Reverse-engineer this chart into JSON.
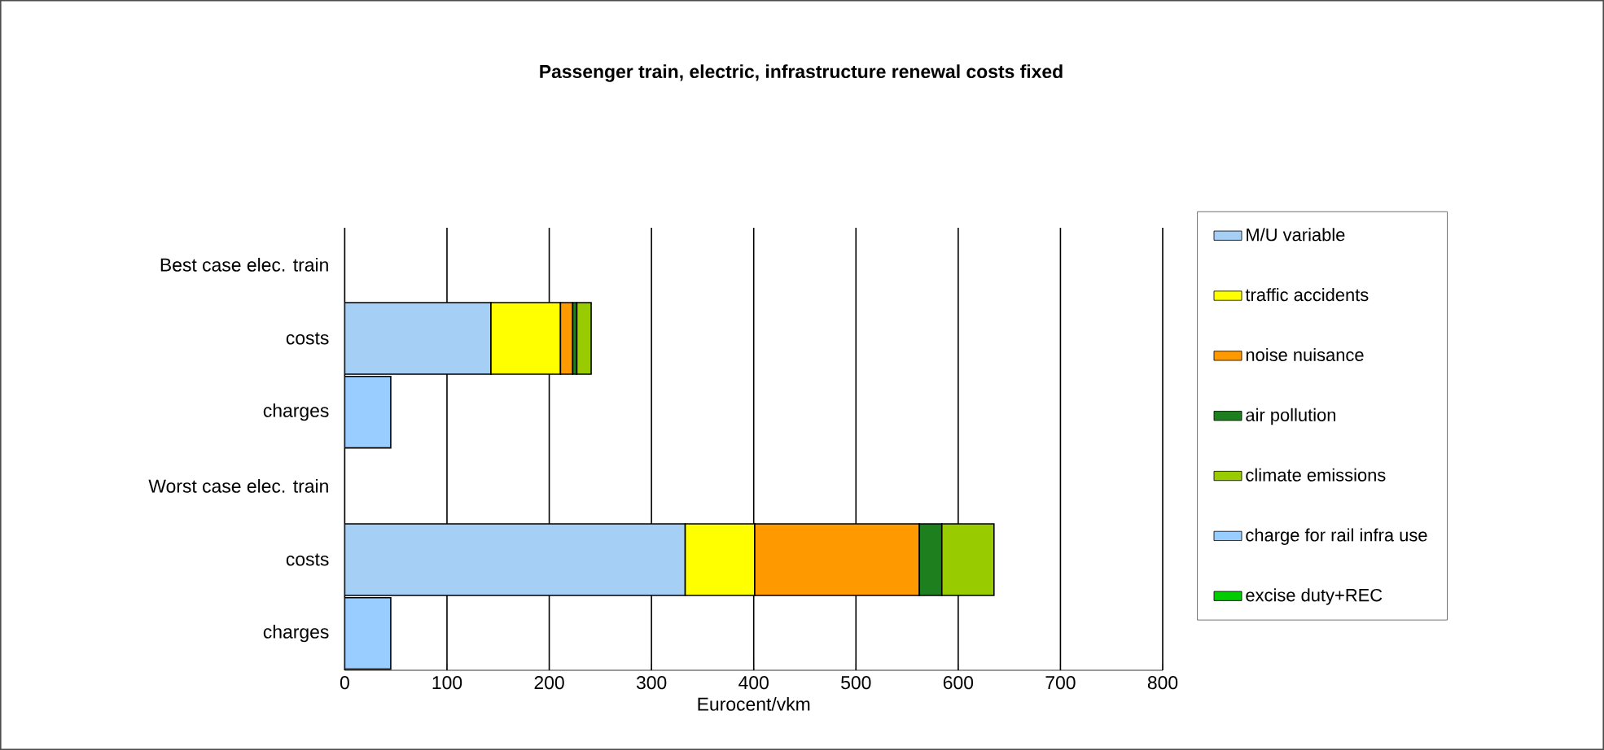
{
  "chart_data": {
    "type": "bar",
    "orientation": "horizontal",
    "stacked": true,
    "title": "Passenger train, electric, infrastructure renewal costs fixed",
    "xlabel": "Eurocent/vkm",
    "categories": [
      "Best case elec. train",
      "costs",
      "charges",
      "Worst case elec. train",
      "costs",
      "charges"
    ],
    "series": [
      {
        "name": "M/U variable",
        "color": "#a6cff5",
        "values": [
          null,
          143,
          null,
          null,
          333,
          null
        ]
      },
      {
        "name": "traffic accidents",
        "color": "#ffff00",
        "values": [
          null,
          68,
          null,
          null,
          68,
          null
        ]
      },
      {
        "name": "noise nuisance",
        "color": "#ff9900",
        "values": [
          null,
          12,
          null,
          null,
          161,
          null
        ]
      },
      {
        "name": "air pollution",
        "color": "#1e7f1e",
        "values": [
          null,
          4,
          null,
          null,
          22,
          null
        ]
      },
      {
        "name": "climate emissions",
        "color": "#99cc00",
        "values": [
          null,
          14,
          null,
          null,
          51,
          null
        ]
      },
      {
        "name": "charge for rail infra use",
        "color": "#99ccff",
        "values": [
          null,
          null,
          45,
          null,
          null,
          45
        ]
      },
      {
        "name": "excise duty+REC",
        "color": "#00cc00",
        "values": [
          null,
          null,
          null,
          null,
          null,
          null
        ]
      }
    ],
    "xlim": [
      0,
      800
    ],
    "xticks": [
      0,
      100,
      200,
      300,
      400,
      500,
      600,
      700,
      800
    ],
    "grid": "x",
    "legend": "right"
  }
}
